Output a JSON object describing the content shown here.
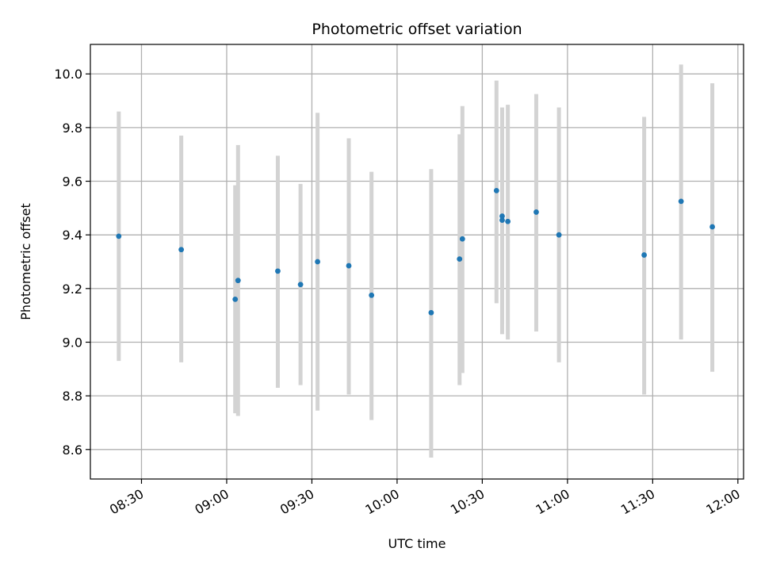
{
  "chart_data": {
    "type": "scatter",
    "title": "Photometric offset variation",
    "xlabel": "UTC time",
    "ylabel": "Photometric offset",
    "xlim": [
      "08:12",
      "12:02"
    ],
    "ylim": [
      8.49,
      10.11
    ],
    "grid": true,
    "x_ticks": [
      "08:30",
      "09:00",
      "09:30",
      "10:00",
      "10:30",
      "11:00",
      "11:30",
      "12:00"
    ],
    "y_ticks": [
      8.6,
      8.8,
      9.0,
      9.2,
      9.4,
      9.6,
      9.8,
      10.0
    ],
    "y_tick_labels": [
      "8.6",
      "8.8",
      "9.0",
      "9.2",
      "9.4",
      "9.6",
      "9.8",
      "10.0"
    ],
    "colors": {
      "point": "#1f77b4",
      "errorbar": "#d3d3d3",
      "grid": "#b0b0b0"
    },
    "points": [
      {
        "time": "08:22",
        "y": 9.395,
        "ylow": 8.93,
        "yhigh": 9.86
      },
      {
        "time": "08:44",
        "y": 9.345,
        "ylow": 8.925,
        "yhigh": 9.77
      },
      {
        "time": "09:03",
        "y": 9.16,
        "ylow": 8.735,
        "yhigh": 9.585
      },
      {
        "time": "09:04",
        "y": 9.23,
        "ylow": 8.725,
        "yhigh": 9.735
      },
      {
        "time": "09:18",
        "y": 9.265,
        "ylow": 8.83,
        "yhigh": 9.695
      },
      {
        "time": "09:26",
        "y": 9.215,
        "ylow": 8.84,
        "yhigh": 9.59
      },
      {
        "time": "09:32",
        "y": 9.3,
        "ylow": 8.745,
        "yhigh": 9.855
      },
      {
        "time": "09:43",
        "y": 9.285,
        "ylow": 8.805,
        "yhigh": 9.76
      },
      {
        "time": "09:51",
        "y": 9.175,
        "ylow": 8.71,
        "yhigh": 9.635
      },
      {
        "time": "10:12",
        "y": 9.11,
        "ylow": 8.57,
        "yhigh": 9.645
      },
      {
        "time": "10:22",
        "y": 9.31,
        "ylow": 8.84,
        "yhigh": 9.775
      },
      {
        "time": "10:23",
        "y": 9.385,
        "ylow": 8.885,
        "yhigh": 9.88
      },
      {
        "time": "10:35",
        "y": 9.565,
        "ylow": 9.145,
        "yhigh": 9.975
      },
      {
        "time": "10:37",
        "y": 9.47,
        "ylow": 9.065,
        "yhigh": 9.865
      },
      {
        "time": "10:37",
        "y": 9.455,
        "ylow": 9.03,
        "yhigh": 9.875
      },
      {
        "time": "10:39",
        "y": 9.45,
        "ylow": 9.01,
        "yhigh": 9.885
      },
      {
        "time": "10:49",
        "y": 9.485,
        "ylow": 9.04,
        "yhigh": 9.925
      },
      {
        "time": "10:57",
        "y": 9.4,
        "ylow": 8.925,
        "yhigh": 9.875
      },
      {
        "time": "11:27",
        "y": 9.325,
        "ylow": 8.805,
        "yhigh": 9.84
      },
      {
        "time": "11:40",
        "y": 9.525,
        "ylow": 9.01,
        "yhigh": 10.035
      },
      {
        "time": "11:51",
        "y": 9.43,
        "ylow": 8.89,
        "yhigh": 9.965
      }
    ]
  }
}
